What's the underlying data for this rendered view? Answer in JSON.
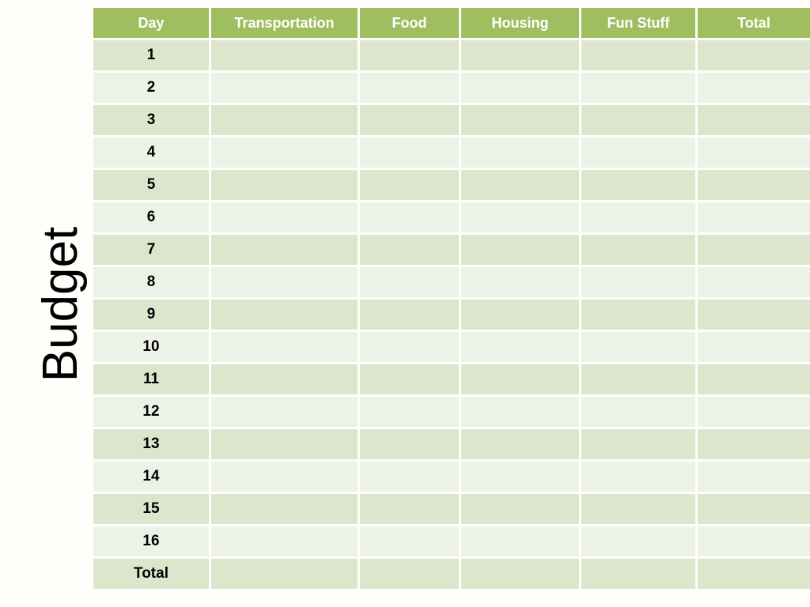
{
  "title": {
    "text": "Budget"
  },
  "table": {
    "columns": [
      "Day",
      "Transportation",
      "Food",
      "Housing",
      "Fun Stuff",
      "Total"
    ],
    "rows": [
      {
        "label": "1",
        "cells": [
          "",
          "",
          "",
          "",
          ""
        ]
      },
      {
        "label": "2",
        "cells": [
          "",
          "",
          "",
          "",
          ""
        ]
      },
      {
        "label": "3",
        "cells": [
          "",
          "",
          "",
          "",
          ""
        ]
      },
      {
        "label": "4",
        "cells": [
          "",
          "",
          "",
          "",
          ""
        ]
      },
      {
        "label": "5",
        "cells": [
          "",
          "",
          "",
          "",
          ""
        ]
      },
      {
        "label": "6",
        "cells": [
          "",
          "",
          "",
          "",
          ""
        ]
      },
      {
        "label": "7",
        "cells": [
          "",
          "",
          "",
          "",
          ""
        ]
      },
      {
        "label": "8",
        "cells": [
          "",
          "",
          "",
          "",
          ""
        ]
      },
      {
        "label": "9",
        "cells": [
          "",
          "",
          "",
          "",
          ""
        ]
      },
      {
        "label": "10",
        "cells": [
          "",
          "",
          "",
          "",
          ""
        ]
      },
      {
        "label": "11",
        "cells": [
          "",
          "",
          "",
          "",
          ""
        ]
      },
      {
        "label": "12",
        "cells": [
          "",
          "",
          "",
          "",
          ""
        ]
      },
      {
        "label": "13",
        "cells": [
          "",
          "",
          "",
          "",
          ""
        ]
      },
      {
        "label": "14",
        "cells": [
          "",
          "",
          "",
          "",
          ""
        ]
      },
      {
        "label": "15",
        "cells": [
          "",
          "",
          "",
          "",
          ""
        ]
      },
      {
        "label": "16",
        "cells": [
          "",
          "",
          "",
          "",
          ""
        ]
      },
      {
        "label": "Total",
        "cells": [
          "",
          "",
          "",
          "",
          ""
        ]
      }
    ],
    "colors": {
      "header_bg": "#9fbe60",
      "header_text": "#ffffff",
      "band_dark": "#dbe6cd",
      "band_light": "#edf2e6",
      "label_text": "#000000"
    }
  }
}
